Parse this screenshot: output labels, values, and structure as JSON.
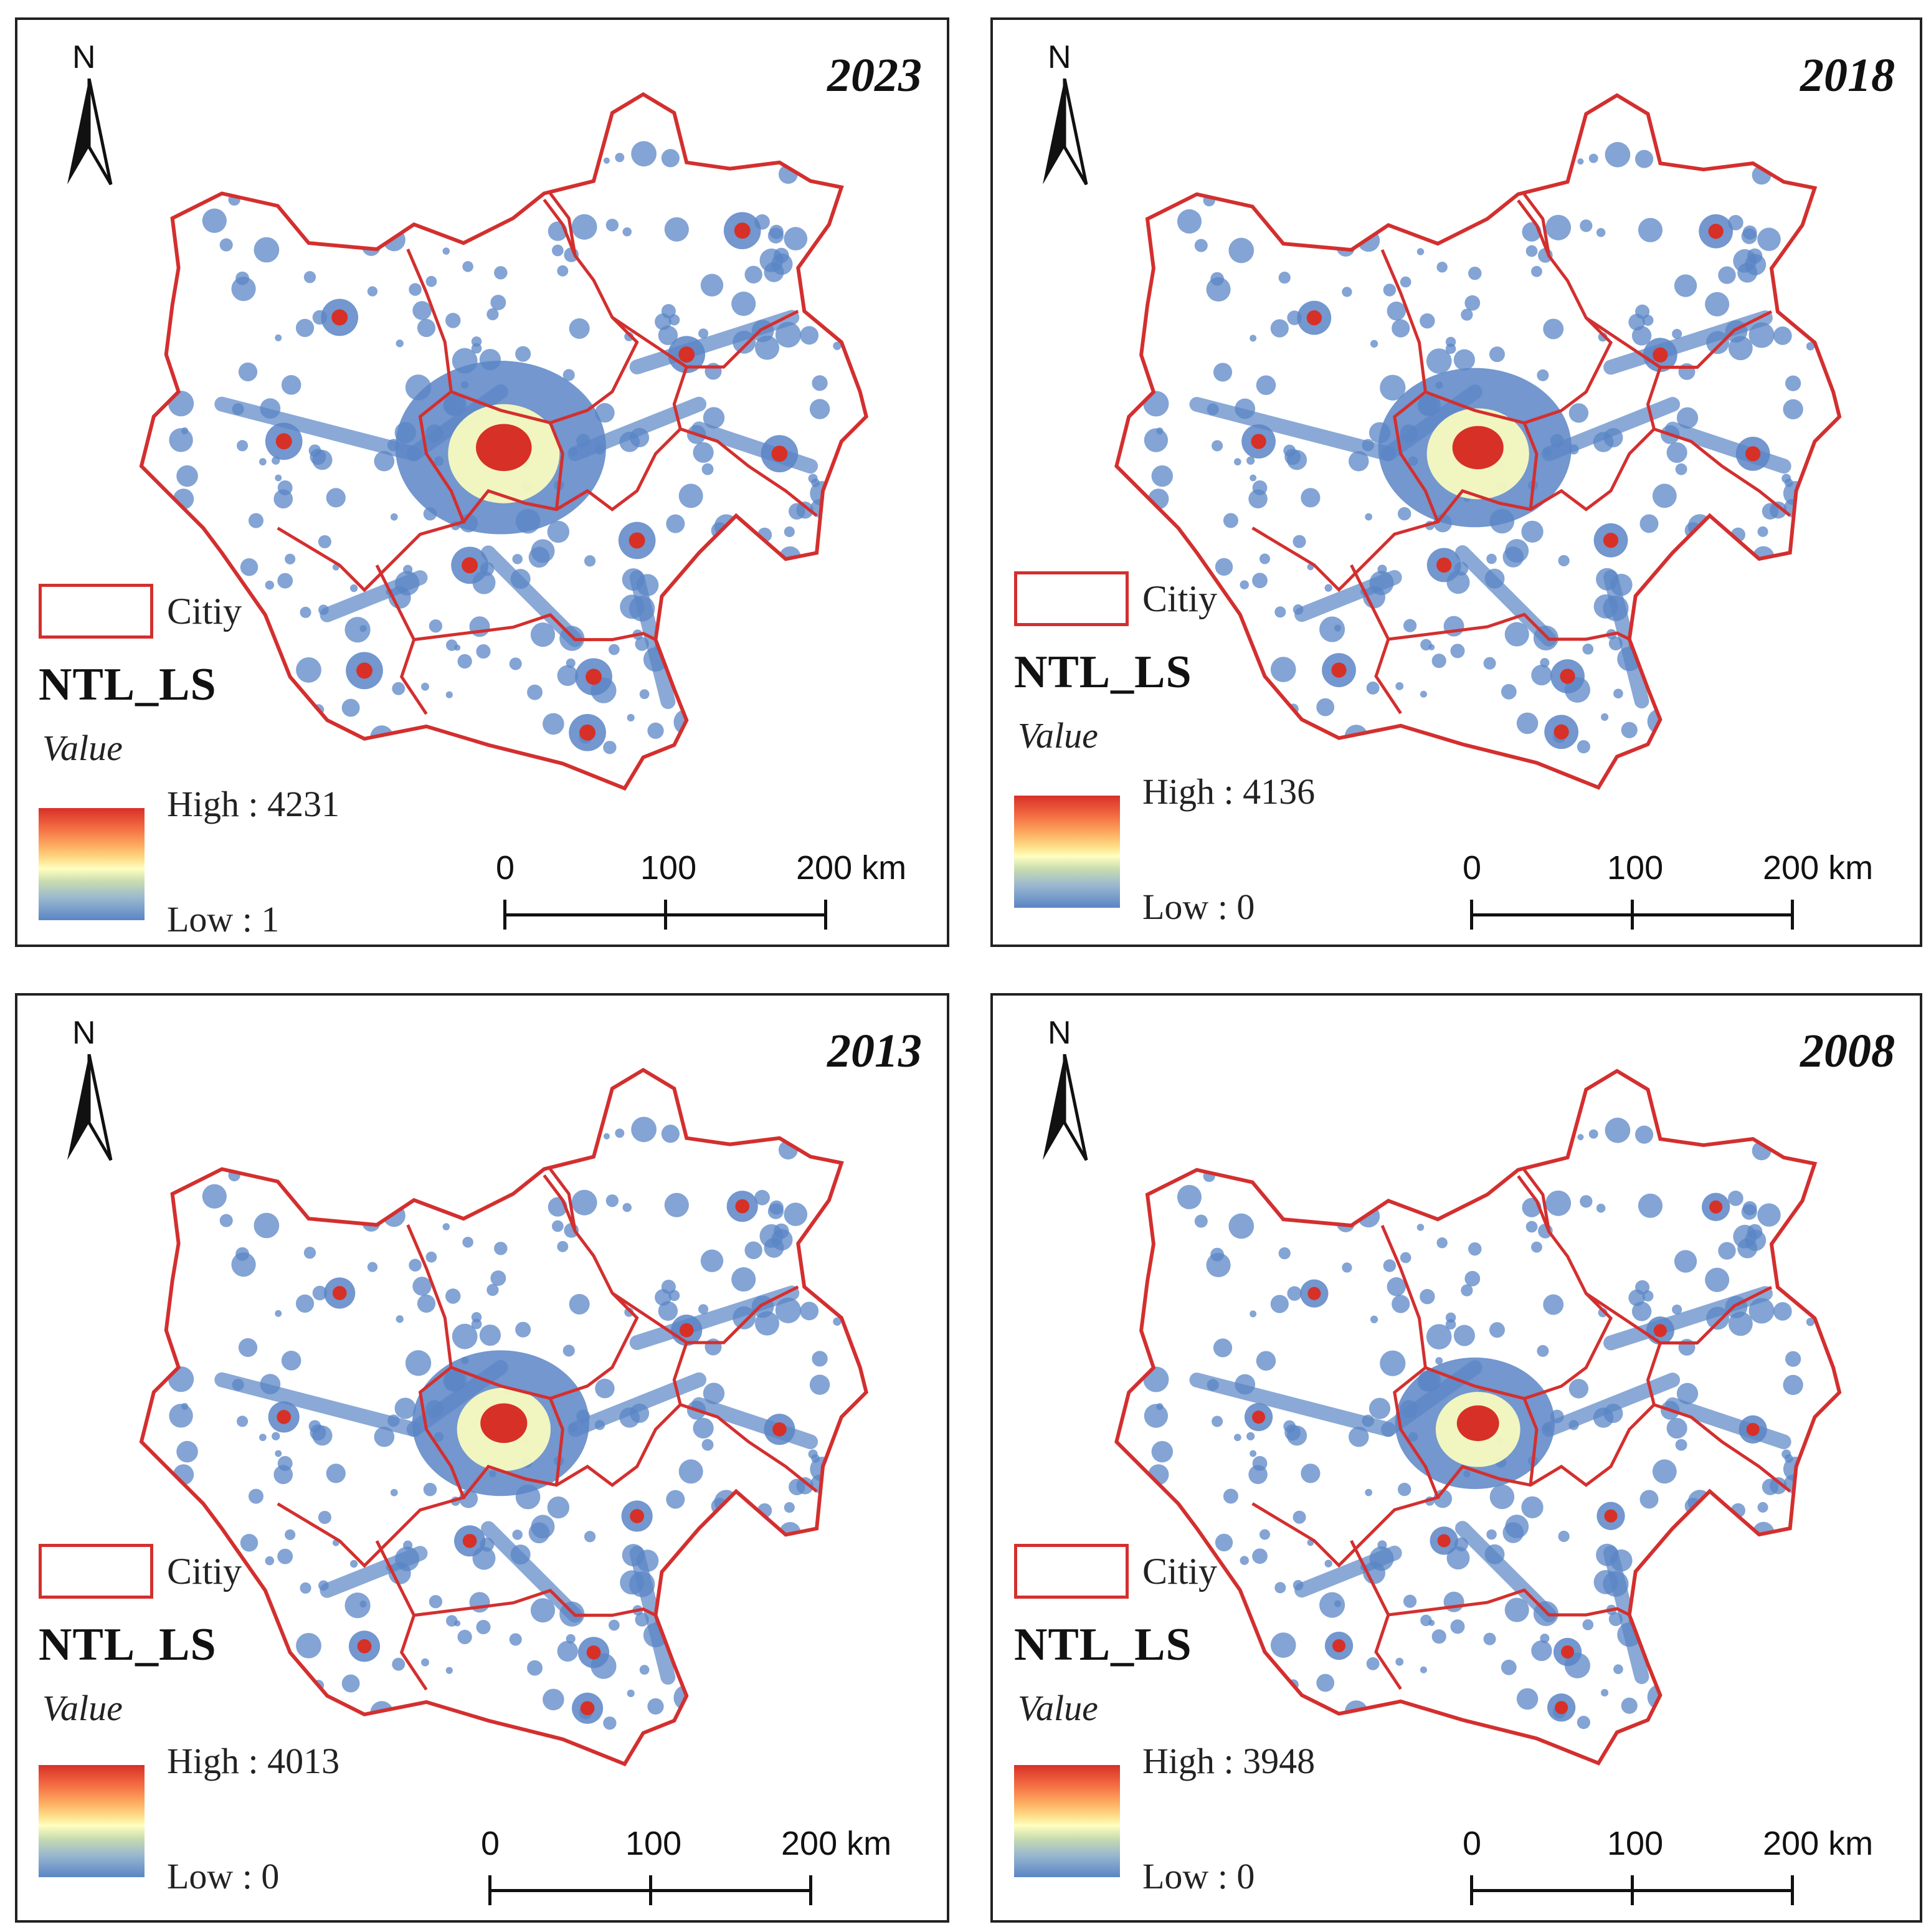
{
  "panels": [
    {
      "year": "2023",
      "north_label": "N",
      "legend": {
        "city_label": "Citiy",
        "title": "NTL_LS",
        "value_label": "Value",
        "high": "High : 4231",
        "low": "Low : 1"
      },
      "scale": {
        "labels": [
          "0",
          "100",
          "200 km"
        ]
      }
    },
    {
      "year": "2018",
      "north_label": "N",
      "legend": {
        "city_label": "Citiy",
        "title": "NTL_LS",
        "value_label": "Value",
        "high": "High : 4136",
        "low": "Low : 0"
      },
      "scale": {
        "labels": [
          "0",
          "100",
          "200 km"
        ]
      }
    },
    {
      "year": "2013",
      "north_label": "N",
      "legend": {
        "city_label": "Citiy",
        "title": "NTL_LS",
        "value_label": "Value",
        "high": "High : 4013",
        "low": "Low : 0"
      },
      "scale": {
        "labels": [
          "0",
          "100",
          "200 km"
        ]
      }
    },
    {
      "year": "2008",
      "north_label": "N",
      "legend": {
        "city_label": "Citiy",
        "title": "NTL_LS",
        "value_label": "Value",
        "high": "High : 3948",
        "low": "Low : 0"
      },
      "scale": {
        "labels": [
          "0",
          "100",
          "200 km"
        ]
      }
    }
  ],
  "colors": {
    "boundary": "#d32f2f",
    "lights_low": "#5a85c5",
    "lights_mid": "#ffffbf",
    "lights_high": "#d73027",
    "frame": "#222222"
  }
}
